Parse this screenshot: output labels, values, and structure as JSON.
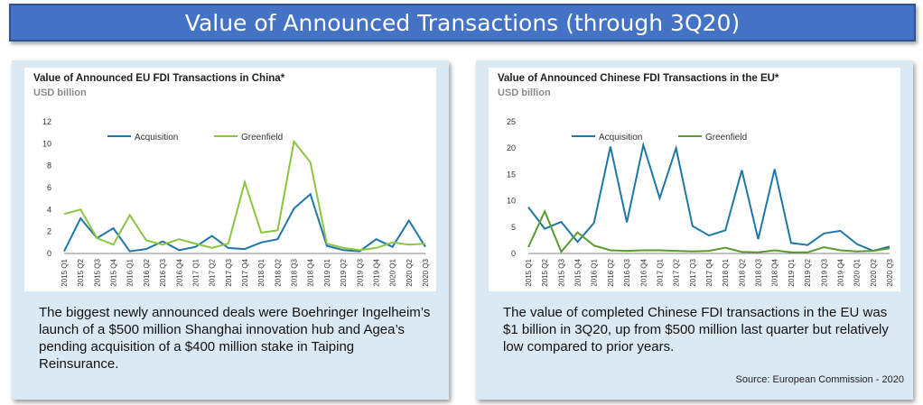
{
  "header": {
    "title": "Value of Announced Transactions (through 3Q20)"
  },
  "left_panel": {
    "chart_title": "Value of Announced EU FDI Transactions in China*",
    "unit": "USD billion",
    "caption": "The biggest newly announced deals were Boehringer Ingelheim’s launch of a $500 million Shanghai innovation hub and Agea’s pending acquisition of a $400 million stake in Taiping Reinsurance."
  },
  "right_panel": {
    "chart_title": "Value of Announced Chinese FDI Transactions in the EU*",
    "unit": "USD billion",
    "caption": "The value of completed Chinese FDI transactions in the EU was $1 billion in 3Q20, up from $500 million last quarter but relatively low compared to prior years.",
    "source": "Source: European Commission - 2020"
  },
  "chart_data": [
    {
      "type": "line",
      "title": "Value of Announced EU FDI Transactions in China*",
      "ylabel": "USD billion",
      "categories": [
        "2015 Q1",
        "2015 Q2",
        "2015 Q3",
        "2015 Q4",
        "2016 Q1",
        "2016 Q2",
        "2016 Q3",
        "2016 Q4",
        "2017 Q1",
        "2017 Q2",
        "2017 Q3",
        "2017 Q4",
        "2018 Q1",
        "2018 Q2",
        "2018 Q3",
        "2018 Q4",
        "2019 Q1",
        "2019 Q2",
        "2019 Q3",
        "2019 Q4",
        "2020 Q1",
        "2020 Q2",
        "2020 Q3"
      ],
      "ylim": [
        0,
        12
      ],
      "yticks": [
        0,
        2,
        4,
        6,
        8,
        10,
        12
      ],
      "legend_position": "top",
      "series": [
        {
          "name": "Acquisition",
          "color": "#1f77a8",
          "values": [
            0.2,
            3.2,
            1.4,
            2.3,
            0.2,
            0.4,
            1.1,
            0.3,
            0.6,
            1.6,
            0.5,
            0.4,
            1.0,
            1.3,
            4.1,
            5.4,
            0.7,
            0.3,
            0.2,
            1.3,
            0.6,
            3.0,
            0.6
          ]
        },
        {
          "name": "Greenfield",
          "color": "#8cc63f",
          "values": [
            3.6,
            4.0,
            1.4,
            0.8,
            3.5,
            1.2,
            0.8,
            1.3,
            0.9,
            0.5,
            0.9,
            6.5,
            1.9,
            2.1,
            10.2,
            8.3,
            0.9,
            0.5,
            0.3,
            0.5,
            1.0,
            0.8,
            0.9
          ]
        }
      ]
    },
    {
      "type": "line",
      "title": "Value of Announced Chinese FDI Transactions in the EU*",
      "ylabel": "USD billion",
      "categories": [
        "2015 Q1",
        "2015 Q2",
        "2015 Q3",
        "2015 Q4",
        "2016 Q1",
        "2016 Q2",
        "2016 Q3",
        "2016 Q4",
        "2017 Q1",
        "2017 Q2",
        "2017 Q3",
        "2017 Q4",
        "2018 Q1",
        "2018 Q2",
        "2018 Q3",
        "2018 Q4",
        "2019 Q1",
        "2019 Q2",
        "2019 Q3",
        "2019 Q4",
        "2020 Q1",
        "2020 Q2",
        "2020 Q3"
      ],
      "ylim": [
        0,
        25
      ],
      "yticks": [
        0,
        5,
        10,
        15,
        20,
        25
      ],
      "legend_position": "top",
      "series": [
        {
          "name": "Acquisition",
          "color": "#1f77a8",
          "values": [
            8.8,
            4.7,
            6.0,
            2.2,
            5.8,
            20.3,
            5.9,
            20.6,
            10.5,
            20.0,
            5.2,
            3.4,
            4.4,
            15.8,
            2.7,
            16.0,
            2.0,
            1.6,
            3.8,
            4.3,
            1.8,
            0.5,
            1.3
          ]
        },
        {
          "name": "Greenfield",
          "color": "#5a9a2f",
          "values": [
            1.2,
            8.0,
            0.3,
            4.0,
            1.5,
            0.6,
            0.5,
            0.6,
            0.6,
            0.5,
            0.4,
            0.5,
            1.1,
            0.3,
            0.2,
            0.6,
            0.2,
            0.2,
            1.2,
            0.6,
            0.4,
            0.5,
            1.0
          ]
        }
      ]
    }
  ]
}
